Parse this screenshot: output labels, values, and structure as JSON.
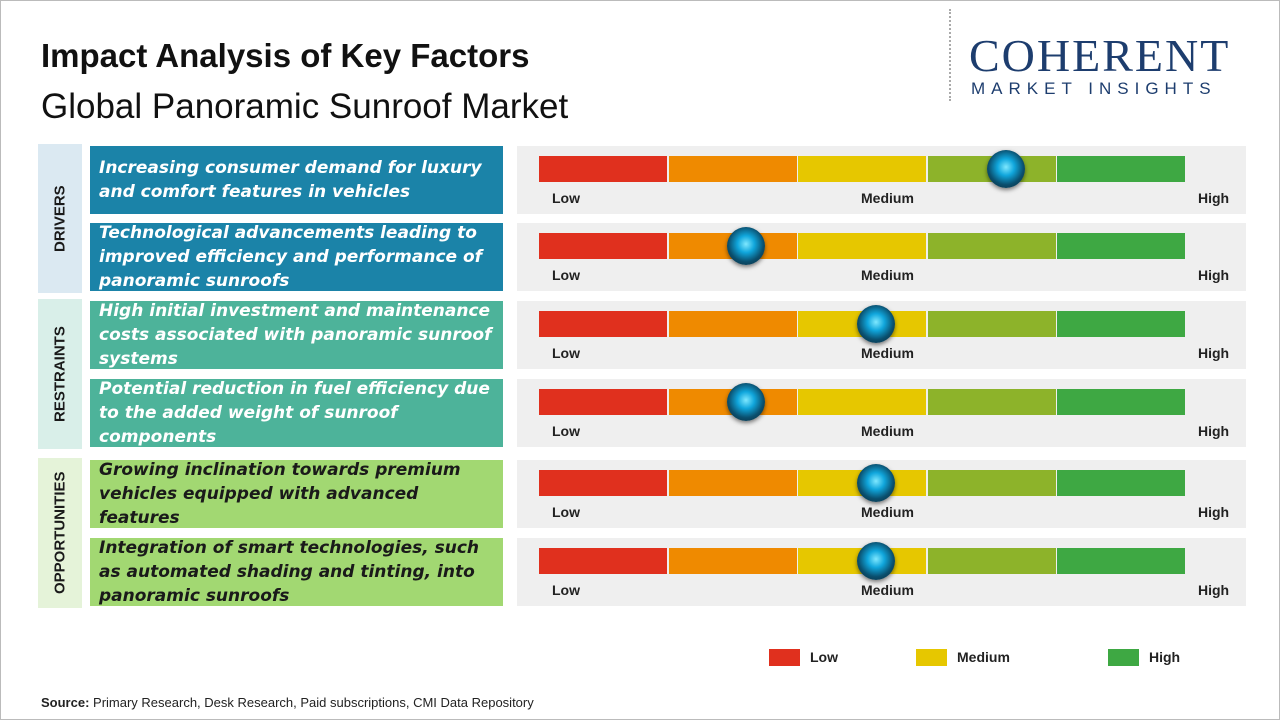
{
  "header": {
    "title": "Impact Analysis of Key Factors",
    "subtitle": "Global Panoramic Sunroof Market"
  },
  "logo": {
    "name": "COHERENT",
    "tagline": "MARKET INSIGHTS"
  },
  "scale": {
    "low": "Low",
    "medium": "Medium",
    "high": "High",
    "segment_colors": [
      "#e0301e",
      "#ef8a00",
      "#e6c700",
      "#8db32a",
      "#3ea843"
    ]
  },
  "groups": [
    {
      "label": "DRIVERS",
      "color": "#1b83a8",
      "bg": "#dbe9f2",
      "text_color": "#ffffff",
      "factors": [
        {
          "text": "Increasing consumer demand for luxury and comfort features in vehicles",
          "level": 3.6
        },
        {
          "text": "Technological advancements leading to improved efficiency and performance of panoramic sunroofs",
          "level": 1.6
        }
      ]
    },
    {
      "label": "RESTRAINTS",
      "color": "#4db39a",
      "bg": "#d9efe9",
      "text_color": "#ffffff",
      "factors": [
        {
          "text": "High initial investment and maintenance costs associated with panoramic sunroof systems",
          "level": 2.6
        },
        {
          "text": "Potential reduction in fuel efficiency due to the added weight of sunroof components",
          "level": 1.6
        }
      ]
    },
    {
      "label": "OPPORTUNITIES",
      "color": "#a2d872",
      "bg": "#e5f3d9",
      "text_color": "#1a1a1a",
      "factors": [
        {
          "text": "Growing inclination towards premium vehicles equipped with advanced features",
          "level": 2.6
        },
        {
          "text": "Integration of smart technologies, such as automated shading and tinting, into panoramic sunroofs",
          "level": 2.6
        }
      ]
    }
  ],
  "legend": [
    {
      "label": "Low",
      "color": "#e0301e"
    },
    {
      "label": "Medium",
      "color": "#e6c700"
    },
    {
      "label": "High",
      "color": "#3ea843"
    }
  ],
  "source": {
    "label": "Source:",
    "text": "Primary Research, Desk Research, Paid subscriptions, CMI Data Repository"
  }
}
